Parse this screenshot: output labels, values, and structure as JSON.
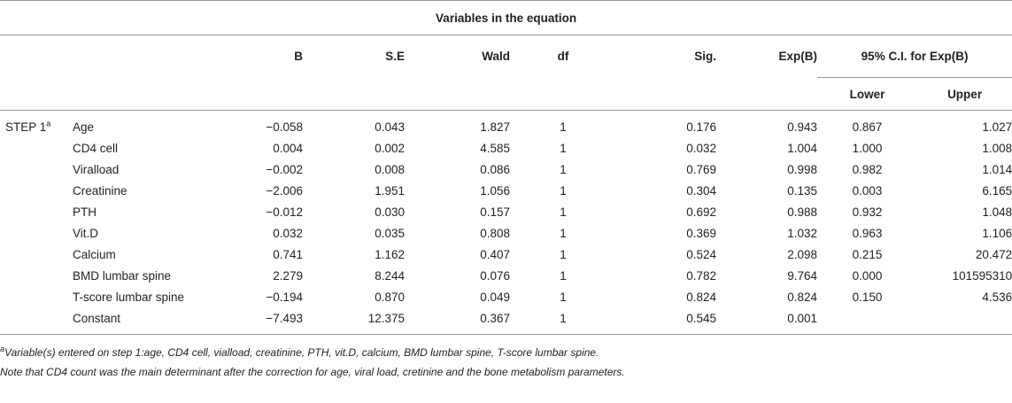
{
  "table": {
    "title": "Variables in the equation",
    "columns": [
      "B",
      "S.E",
      "Wald",
      "df",
      "Sig.",
      "Exp(B)"
    ],
    "ci_header": "95% C.I. for Exp(B)",
    "ci_sub": [
      "Lower",
      "Upper"
    ],
    "step_label": "STEP 1",
    "step_sup": "a",
    "rows": [
      {
        "variable": "Age",
        "values": [
          "−0.058",
          "0.043",
          "1.827",
          "1",
          "0.176",
          "0.943",
          "0.867",
          "1.027"
        ]
      },
      {
        "variable": "CD4 cell",
        "values": [
          "0.004",
          "0.002",
          "4.585",
          "1",
          "0.032",
          "1.004",
          "1.000",
          "1.008"
        ]
      },
      {
        "variable": "Viralload",
        "values": [
          "−0.002",
          "0.008",
          "0.086",
          "1",
          "0.769",
          "0.998",
          "0.982",
          "1.014"
        ]
      },
      {
        "variable": "Creatinine",
        "values": [
          "−2.006",
          "1.951",
          "1.056",
          "1",
          "0.304",
          "0.135",
          "0.003",
          "6.165"
        ]
      },
      {
        "variable": "PTH",
        "values": [
          "−0.012",
          "0.030",
          "0.157",
          "1",
          "0.692",
          "0.988",
          "0.932",
          "1.048"
        ]
      },
      {
        "variable": "Vit.D",
        "values": [
          "0.032",
          "0.035",
          "0.808",
          "1",
          "0.369",
          "1.032",
          "0.963",
          "1.106"
        ]
      },
      {
        "variable": "Calcium",
        "values": [
          "0.741",
          "1.162",
          "0.407",
          "1",
          "0.524",
          "2.098",
          "0.215",
          "20.472"
        ]
      },
      {
        "variable": "BMD lumbar spine",
        "values": [
          "2.279",
          "8.244",
          "0.076",
          "1",
          "0.782",
          "9.764",
          "0.000",
          "101595310"
        ]
      },
      {
        "variable": "T-score lumbar spine",
        "values": [
          "−0.194",
          "0.870",
          "0.049",
          "1",
          "0.824",
          "0.824",
          "0.150",
          "4.536"
        ]
      },
      {
        "variable": "Constant",
        "values": [
          "−7.493",
          "12.375",
          "0.367",
          "1",
          "0.545",
          "0.001",
          "",
          ""
        ]
      }
    ]
  },
  "footnotes": {
    "marker": "a",
    "line1": "Variable(s) entered on step 1:age, CD4 cell, vialload, creatinine, PTH, vit.D, calcium, BMD lumbar spine, T-score lumbar spine.",
    "line2": "Note that CD4 count was the main determinant after the correction for age, viral load, cretinine and the bone metabolism parameters."
  }
}
